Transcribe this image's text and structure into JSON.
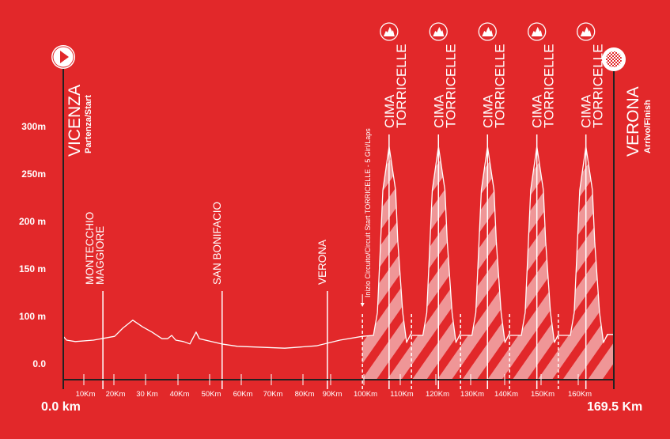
{
  "chart_data": {
    "type": "area",
    "title": "",
    "xlabel": "",
    "ylabel": "",
    "xlim": [
      0,
      169.5
    ],
    "start_label": "0.0 km",
    "end_label": "169.5 Km",
    "y_ticks": [
      "0.0",
      "100 m",
      "150 m",
      "200 m",
      "250m",
      "300m"
    ],
    "y_tick_values": [
      0,
      100,
      150,
      200,
      250,
      300
    ],
    "x_ticks": [
      "10Km",
      "20Km",
      "30 Km",
      "40Km",
      "50Km",
      "60Km",
      "70Km",
      "80Km",
      "90Km",
      "100Km",
      "110Km",
      "120Km",
      "130Km",
      "140Km",
      "150Km",
      "160Km"
    ],
    "grid": false,
    "colors": {
      "background": "#e2282a",
      "line": "#ffffff",
      "axis": "#222222",
      "hatch": "#ef9697"
    },
    "profile": {
      "km": [
        0,
        1.0,
        3.7,
        9.3,
        15.8,
        18.3,
        21.4,
        24.4,
        27.3,
        30.4,
        32.1,
        33.4,
        34.6,
        37.0,
        39.0,
        40.9,
        41.9,
        48.7,
        53.6,
        68.2,
        77.9,
        85.2,
        92.1,
        95.5,
        96.7,
        97.7,
        98.4,
        100.3,
        102.3,
        103.0,
        104.5,
        105.7,
        106.9,
        107.2,
        110.7,
        111.9,
        112.9,
        113.6,
        115.5,
        117.5,
        118.2,
        119.7,
        120.9,
        122.1,
        122.4,
        125.8,
        127.0,
        128.0,
        128.7,
        130.6,
        132.6,
        133.3,
        134.8,
        136.0,
        137.2,
        137.5,
        141.0,
        142.2,
        143.2,
        143.9,
        145.8,
        147.8,
        148.5,
        150.0,
        151.2,
        152.4,
        152.7,
        156.1,
        157.3,
        158.3,
        159.0,
        160.9,
        162.9,
        163.6,
        165.1,
        166.3,
        167.5,
        169.5
      ],
      "elev": [
        58,
        50,
        47,
        50,
        58,
        75,
        92,
        78,
        67,
        53,
        53,
        60,
        50,
        47,
        42,
        67,
        53,
        42,
        37,
        33,
        38,
        50,
        58,
        60,
        104,
        179,
        233,
        279,
        233,
        179,
        104,
        45,
        62,
        60,
        60,
        104,
        179,
        233,
        279,
        233,
        179,
        104,
        45,
        62,
        60,
        60,
        104,
        179,
        233,
        279,
        233,
        179,
        104,
        45,
        62,
        60,
        60,
        104,
        179,
        233,
        279,
        233,
        179,
        104,
        45,
        62,
        60,
        60,
        104,
        179,
        233,
        279,
        233,
        179,
        104,
        45,
        62,
        62
      ]
    },
    "circuit": {
      "start_km": 92.1,
      "lap_km": [
        92.1,
        107.2,
        122.3,
        137.4,
        152.4
      ],
      "label": "Inizio Circuito/Circuit Start TORRICELLE - 5 Giri/Laps"
    },
    "start": {
      "km": 0,
      "name": "VICENZA",
      "sub": "Partenza/Start",
      "icon": "play-icon"
    },
    "finish": {
      "km": 169.5,
      "name": "VERONA",
      "sub": "Arrivo/Finish",
      "icon": "checkered-flag-icon"
    },
    "towns": [
      {
        "km": 12.2,
        "lines": [
          "MONTECCHIO",
          "MAGGIORE"
        ]
      },
      {
        "km": 48.9,
        "lines": [
          "SAN BONIFACIO"
        ]
      },
      {
        "km": 81.3,
        "lines": [
          "VERONA"
        ]
      }
    ],
    "climbs": [
      {
        "km": 100.3,
        "lines": [
          "CIMA",
          "TORRICELLE"
        ],
        "icon": "mountain-icon"
      },
      {
        "km": 115.5,
        "lines": [
          "CIMA",
          "TORRICELLE"
        ],
        "icon": "mountain-icon"
      },
      {
        "km": 130.6,
        "lines": [
          "CIMA",
          "TORRICELLE"
        ],
        "icon": "mountain-icon"
      },
      {
        "km": 145.8,
        "lines": [
          "CIMA",
          "TORRICELLE"
        ],
        "icon": "mountain-icon"
      },
      {
        "km": 160.9,
        "lines": [
          "CIMA",
          "TORRICELLE"
        ],
        "icon": "mountain-icon"
      }
    ]
  }
}
